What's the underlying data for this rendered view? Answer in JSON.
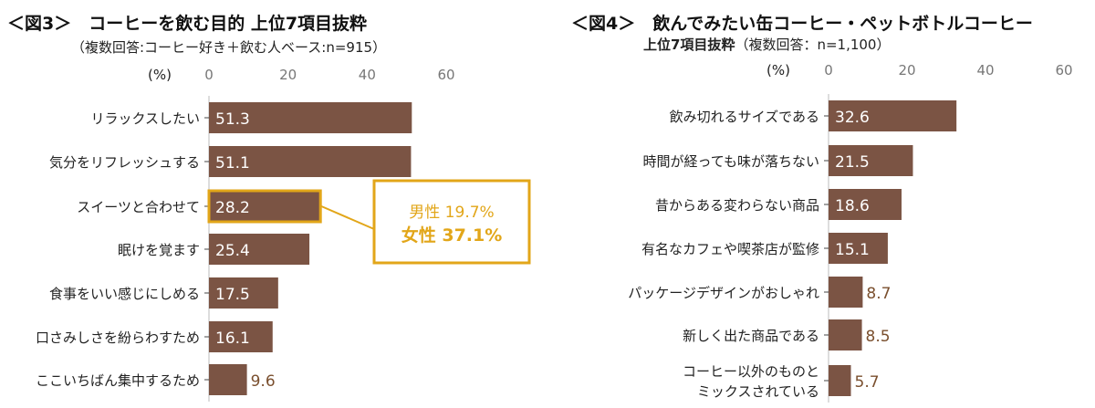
{
  "colors": {
    "bar": "#7B5444",
    "highlight": "#E2A619",
    "outside_label": "#7A4F2E"
  },
  "chart_data": [
    {
      "type": "bar",
      "orientation": "horizontal",
      "title": "＜図3＞　コーヒーを飲む目的 上位7項目抜粋",
      "subtitle": "（複数回答:コーヒー好き＋飲む人ベース:n=915）",
      "unit_label": "(%)",
      "xlim": [
        0,
        60
      ],
      "xticks": [
        "0",
        "20",
        "40",
        "60"
      ],
      "grid": false,
      "categories": [
        "リラックスしたい",
        "気分をリフレッシュする",
        "スイーツと合わせて",
        "眠けを覚ます",
        "食事をいい感じにしめる",
        "口さみしさを紛らわすため",
        "ここいちばん集中するため"
      ],
      "values": [
        51.3,
        51.1,
        28.2,
        25.4,
        17.5,
        16.1,
        9.6
      ],
      "highlight_index": 2,
      "callout": {
        "male_label": "男性",
        "male_value": "19.7%",
        "female_label": "女性",
        "female_value": "37.1%"
      }
    },
    {
      "type": "bar",
      "orientation": "horizontal",
      "title": "＜図4＞　飲んでみたい缶コーヒー・ペットボトルコーヒー",
      "subtitle_bold": "上位7項目抜粋",
      "subtitle": "（複数回答：n=1,100）",
      "unit_label": "(%)",
      "xlim": [
        0,
        60
      ],
      "xticks": [
        "0",
        "20",
        "40",
        "60"
      ],
      "grid": false,
      "categories": [
        "飲み切れるサイズである",
        "時間が経っても味が落ちない",
        "昔からある変わらない商品",
        "有名なカフェや喫茶店が監修",
        "パッケージデザインがおしゃれ",
        "新しく出た商品である",
        "コーヒー以外のものと\nミックスされている"
      ],
      "values": [
        32.6,
        21.5,
        18.6,
        15.1,
        8.7,
        8.5,
        5.7
      ]
    }
  ]
}
